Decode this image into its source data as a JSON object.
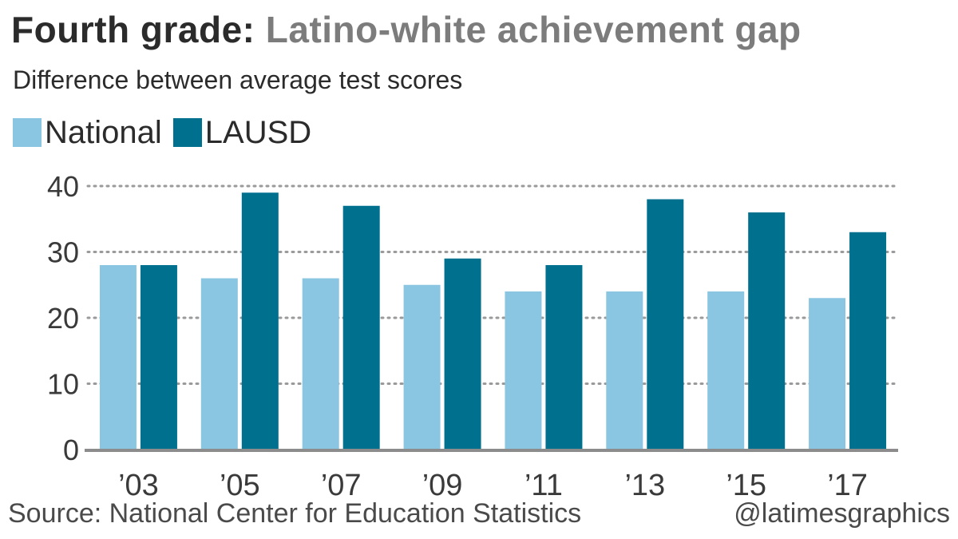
{
  "header": {
    "title_lead": "Fourth grade:",
    "title_rest": "Latino-white achievement gap",
    "subtitle": "Difference between average test scores"
  },
  "colors": {
    "national": "#8ac6e1",
    "lausd": "#00708f",
    "gridline": "#9a9a9a",
    "baseline": "#8c8c8c"
  },
  "chart_data": {
    "type": "bar",
    "title": "Fourth grade: Latino-white achievement gap",
    "subtitle": "Difference between average test scores",
    "categories": [
      "’03",
      "’05",
      "’07",
      "’09",
      "’11",
      "’13",
      "’15",
      "’17"
    ],
    "series": [
      {
        "name": "National",
        "values": [
          28,
          26,
          26,
          25,
          24,
          24,
          24,
          23
        ]
      },
      {
        "name": "LAUSD",
        "values": [
          28,
          39,
          37,
          29,
          28,
          38,
          36,
          33
        ]
      }
    ],
    "ylim": [
      0,
      40
    ],
    "yticks": [
      "0",
      "10",
      "20",
      "30",
      "40"
    ],
    "grid": true,
    "legend": "top-left",
    "xlabel": "",
    "ylabel": ""
  },
  "footer": {
    "source": "Source: National Center for Education Statistics",
    "credit": "@latimesgraphics"
  }
}
